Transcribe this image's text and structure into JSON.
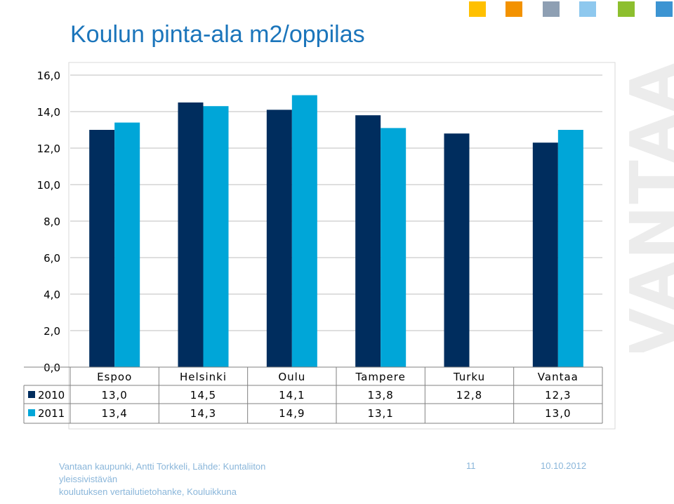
{
  "header": {
    "squares": [
      "#ffc000",
      "#f39200",
      "#8e9fb3",
      "#8ec8ee",
      "#8dbf2e",
      "#3c94d2"
    ]
  },
  "title": "Koulun pinta-ala m2/oppilas",
  "watermark": "VANTAA",
  "colors": {
    "series_2010": "#002d5e",
    "series_2011": "#00a6d8",
    "grid": "#bfbfbf"
  },
  "chart_data": {
    "type": "bar",
    "categories": [
      "Espoo",
      "Helsinki",
      "Oulu",
      "Tampere",
      "Turku",
      "Vantaa"
    ],
    "series": [
      {
        "name": "2010",
        "values": [
          13.0,
          14.5,
          14.1,
          13.8,
          12.8,
          12.3
        ],
        "labels": [
          "13,0",
          "14,5",
          "14,1",
          "13,8",
          "12,8",
          "12,3"
        ]
      },
      {
        "name": "2011",
        "values": [
          13.4,
          14.3,
          14.9,
          13.1,
          null,
          13.0
        ],
        "labels": [
          "13,4",
          "14,3",
          "14,9",
          "13,1",
          "",
          "13,0"
        ]
      }
    ],
    "yticks": [
      0,
      2,
      4,
      6,
      8,
      10,
      12,
      14,
      16
    ],
    "ytick_labels": [
      "0,0",
      "2,0",
      "4,0",
      "6,0",
      "8,0",
      "10,0",
      "12,0",
      "14,0",
      "16,0"
    ],
    "ylim": [
      0,
      16
    ],
    "grid": true,
    "legend": "data-table"
  },
  "footer": {
    "line1": "Vantaan kaupunki, Antti Torkkeli, Lähde: Kuntaliiton yleissivistävän",
    "line2": "koulutuksen vertailutietohanke, Kouluikkuna",
    "page": "11",
    "date": "10.10.2012"
  }
}
